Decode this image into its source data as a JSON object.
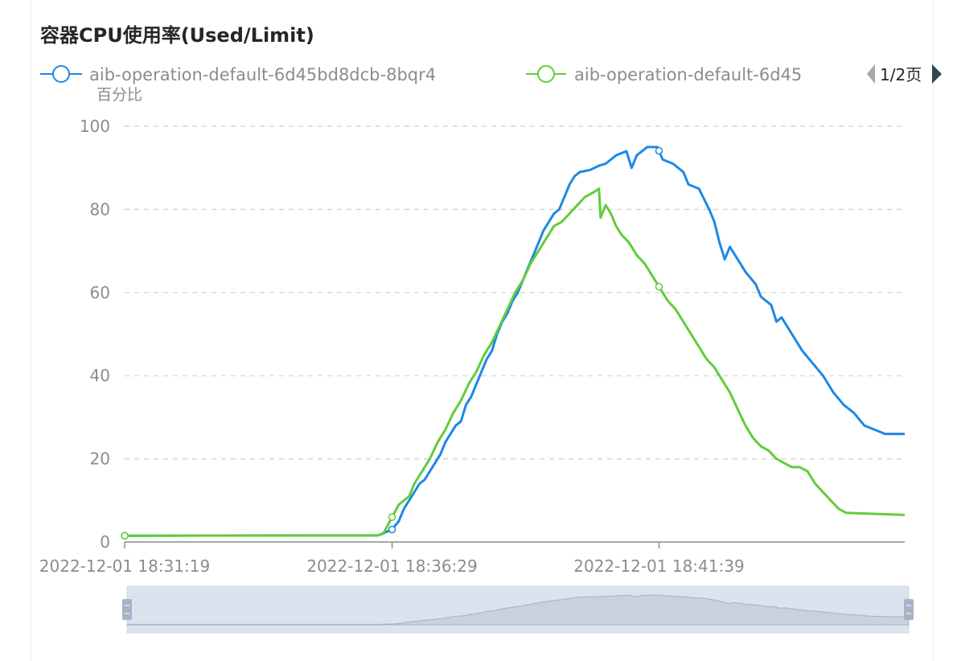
{
  "title": "容器CPU使用率(Used/Limit)",
  "legend": {
    "page_indicator": "1/2页",
    "items": [
      {
        "label": "aib-operation-default-6d45bd8dcb-8bqr4",
        "color": "#1e88e5"
      },
      {
        "label": "aib-operation-default-6d45",
        "color": "#62cc3c"
      }
    ]
  },
  "chart_data": {
    "type": "line",
    "y_unit_label": "百分比",
    "ylim": [
      0,
      100
    ],
    "y_ticks": [
      "100",
      "80",
      "60",
      "40",
      "20",
      "0"
    ],
    "x_tick_labels": [
      "2022-12-01 18:31:19",
      "2022-12-01 18:36:29",
      "2022-12-01 18:41:39"
    ],
    "x_range_minutes": [
      0,
      15.08
    ],
    "grid": true,
    "legend_position": "top",
    "series": [
      {
        "name": "aib-operation-default-6d45bd8dcb-8bqr4",
        "color": "#1e88e5",
        "points": [
          [
            0,
            1.5
          ],
          [
            4.9,
            1.6
          ],
          [
            5.17,
            3
          ],
          [
            5.3,
            5
          ],
          [
            5.4,
            8
          ],
          [
            5.5,
            10
          ],
          [
            5.6,
            12
          ],
          [
            5.7,
            14
          ],
          [
            5.8,
            15
          ],
          [
            5.9,
            17
          ],
          [
            6.0,
            19
          ],
          [
            6.1,
            21
          ],
          [
            6.2,
            24
          ],
          [
            6.3,
            26
          ],
          [
            6.4,
            28
          ],
          [
            6.5,
            29
          ],
          [
            6.6,
            33
          ],
          [
            6.7,
            35
          ],
          [
            6.8,
            38
          ],
          [
            6.9,
            41
          ],
          [
            7.0,
            44
          ],
          [
            7.1,
            46
          ],
          [
            7.2,
            50
          ],
          [
            7.3,
            53
          ],
          [
            7.4,
            55
          ],
          [
            7.5,
            58
          ],
          [
            7.6,
            60
          ],
          [
            7.7,
            63
          ],
          [
            7.8,
            66
          ],
          [
            7.9,
            69
          ],
          [
            8.0,
            72
          ],
          [
            8.1,
            75
          ],
          [
            8.2,
            77
          ],
          [
            8.3,
            79
          ],
          [
            8.4,
            80
          ],
          [
            8.5,
            83
          ],
          [
            8.6,
            86
          ],
          [
            8.7,
            88
          ],
          [
            8.8,
            89
          ],
          [
            9.0,
            89.5
          ],
          [
            9.17,
            90.5
          ],
          [
            9.3,
            91
          ],
          [
            9.5,
            93
          ],
          [
            9.7,
            94
          ],
          [
            9.8,
            90
          ],
          [
            9.9,
            93
          ],
          [
            10.1,
            95
          ],
          [
            10.3,
            95
          ],
          [
            10.4,
            92
          ],
          [
            10.6,
            91
          ],
          [
            10.8,
            89
          ],
          [
            10.9,
            86
          ],
          [
            11.1,
            85
          ],
          [
            11.3,
            80
          ],
          [
            11.4,
            77
          ],
          [
            11.5,
            72
          ],
          [
            11.6,
            68
          ],
          [
            11.7,
            71
          ],
          [
            11.8,
            69
          ],
          [
            11.9,
            67
          ],
          [
            12.0,
            65
          ],
          [
            12.2,
            62
          ],
          [
            12.3,
            59
          ],
          [
            12.5,
            57
          ],
          [
            12.6,
            53
          ],
          [
            12.7,
            54
          ],
          [
            12.9,
            50
          ],
          [
            13.1,
            46
          ],
          [
            13.3,
            43
          ],
          [
            13.5,
            40
          ],
          [
            13.7,
            36
          ],
          [
            13.9,
            33
          ],
          [
            14.1,
            31
          ],
          [
            14.3,
            28
          ],
          [
            14.5,
            27
          ],
          [
            14.7,
            26
          ],
          [
            15.08,
            26
          ]
        ]
      },
      {
        "name": "aib-operation-default-6d45",
        "color": "#62cc3c",
        "points": [
          [
            0,
            1.5
          ],
          [
            4.9,
            1.6
          ],
          [
            5.0,
            2
          ],
          [
            5.17,
            6
          ],
          [
            5.3,
            9
          ],
          [
            5.5,
            11
          ],
          [
            5.6,
            14
          ],
          [
            5.75,
            17
          ],
          [
            5.9,
            20
          ],
          [
            6.05,
            24
          ],
          [
            6.2,
            27
          ],
          [
            6.35,
            31
          ],
          [
            6.5,
            34
          ],
          [
            6.65,
            38
          ],
          [
            6.8,
            41
          ],
          [
            6.95,
            45
          ],
          [
            7.1,
            48
          ],
          [
            7.25,
            52
          ],
          [
            7.4,
            56
          ],
          [
            7.55,
            60
          ],
          [
            7.7,
            63
          ],
          [
            7.85,
            67
          ],
          [
            8.0,
            70
          ],
          [
            8.15,
            73
          ],
          [
            8.3,
            76
          ],
          [
            8.45,
            77
          ],
          [
            8.6,
            79
          ],
          [
            8.75,
            81
          ],
          [
            8.9,
            83
          ],
          [
            9.05,
            84
          ],
          [
            9.17,
            85
          ],
          [
            9.2,
            78
          ],
          [
            9.3,
            81
          ],
          [
            9.4,
            79
          ],
          [
            9.5,
            76
          ],
          [
            9.6,
            74
          ],
          [
            9.75,
            72
          ],
          [
            9.9,
            69
          ],
          [
            10.05,
            67
          ],
          [
            10.2,
            64
          ],
          [
            10.35,
            61
          ],
          [
            10.5,
            58
          ],
          [
            10.65,
            56
          ],
          [
            10.8,
            53
          ],
          [
            10.95,
            50
          ],
          [
            11.1,
            47
          ],
          [
            11.25,
            44
          ],
          [
            11.4,
            42
          ],
          [
            11.55,
            39
          ],
          [
            11.7,
            36
          ],
          [
            11.85,
            32
          ],
          [
            12.0,
            28
          ],
          [
            12.15,
            25
          ],
          [
            12.3,
            23
          ],
          [
            12.45,
            22
          ],
          [
            12.6,
            20
          ],
          [
            12.75,
            19
          ],
          [
            12.9,
            18
          ],
          [
            13.05,
            18
          ],
          [
            13.2,
            17
          ],
          [
            13.35,
            14
          ],
          [
            13.5,
            12
          ],
          [
            13.65,
            10
          ],
          [
            13.8,
            8
          ],
          [
            13.95,
            7
          ],
          [
            15.08,
            6.5
          ]
        ]
      }
    ]
  },
  "zoom_slider": {
    "start_handle": "left",
    "end_handle": "right"
  }
}
